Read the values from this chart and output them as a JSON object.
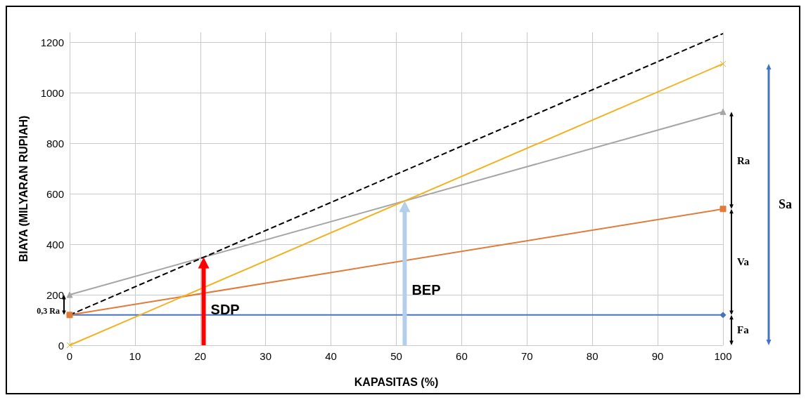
{
  "chart_data": {
    "type": "line",
    "xlabel": "KAPASITAS (%)",
    "ylabel": "BIAYA (MILYARAN RUPIAH)",
    "xlim": [
      0,
      100
    ],
    "xticks": [
      0,
      10,
      20,
      30,
      40,
      50,
      60,
      70,
      80,
      90,
      100
    ],
    "ylim": [
      0,
      1240
    ],
    "yticks": [
      0,
      200,
      400,
      600,
      800,
      1000,
      1200
    ],
    "grid": true,
    "x": [
      0,
      100
    ],
    "series": [
      {
        "color": "#4472c4",
        "values": [
          120,
          120
        ],
        "marker": "diamond",
        "line_style": "solid"
      },
      {
        "color": "#e07b39",
        "values": [
          120,
          540
        ],
        "marker": "square",
        "line_style": "solid"
      },
      {
        "color": "#a5a5a5",
        "values": [
          200,
          925
        ],
        "marker": "triangle",
        "line_style": "solid"
      },
      {
        "color": "#f0b323",
        "values": [
          0,
          1115
        ],
        "marker": "cross",
        "line_style": "solid"
      },
      {
        "color": "#000000",
        "values": [
          120,
          1235
        ],
        "marker": "none",
        "line_style": "dashed"
      }
    ],
    "annotations": [
      "0,3 Ra",
      "Ra",
      "Va",
      "Fa",
      "Sa",
      "SDP",
      "BEP"
    ]
  }
}
